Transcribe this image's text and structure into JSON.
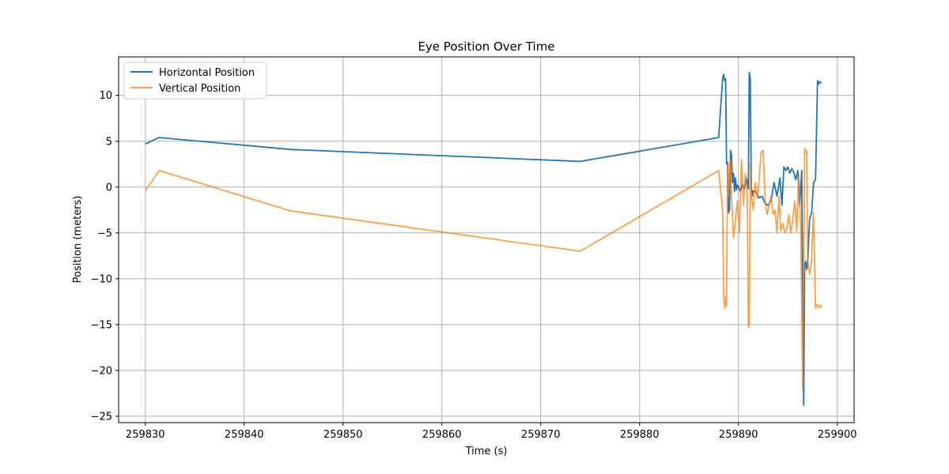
{
  "chart_data": {
    "type": "line",
    "title": "Eye Position Over Time",
    "xlabel": "Time (s)",
    "ylabel": "Position (meters)",
    "xlim": [
      259827.3,
      259901.7
    ],
    "ylim": [
      -25.7,
      14.2
    ],
    "xticks": [
      259830,
      259840,
      259850,
      259860,
      259870,
      259880,
      259890,
      259900
    ],
    "yticks": [
      -25,
      -20,
      -15,
      -10,
      -5,
      0,
      5,
      10
    ],
    "grid": true,
    "legend_position": "top-left",
    "series": [
      {
        "name": "Horizontal Position",
        "color": "#1f77b4",
        "x": [
          259830.0,
          259831.4,
          259844.7,
          259874.0,
          259888.0,
          259888.4,
          259888.5,
          259888.6,
          259888.7,
          259888.8,
          259888.9,
          259889.0,
          259889.1,
          259889.2,
          259889.3,
          259889.4,
          259889.5,
          259889.6,
          259889.7,
          259889.8,
          259889.9,
          259890.0,
          259890.2,
          259890.4,
          259890.6,
          259890.8,
          259891.0,
          259891.1,
          259891.2,
          259891.3,
          259891.4,
          259891.5,
          259891.8,
          259892.1,
          259892.4,
          259892.7,
          259893.0,
          259893.3,
          259893.6,
          259893.9,
          259894.2,
          259894.4,
          259894.6,
          259894.8,
          259895.0,
          259895.2,
          259895.4,
          259895.6,
          259895.8,
          259896.0,
          259896.2,
          259896.4,
          259896.6,
          259896.7,
          259896.8,
          259896.9,
          259897.0,
          259897.2,
          259897.4,
          259897.6,
          259897.8,
          259898.0,
          259898.1,
          259898.2,
          259898.3,
          259898.4
        ],
        "y": [
          4.7,
          5.4,
          4.1,
          2.8,
          5.4,
          11.8,
          12.3,
          11.6,
          11.8,
          2.5,
          2.7,
          -2.8,
          -2.5,
          4.0,
          3.5,
          0.5,
          1.5,
          -0.5,
          1.0,
          -0.3,
          0.2,
          0.0,
          -0.5,
          0.3,
          -0.2,
          1.0,
          -0.2,
          12.5,
          11.8,
          0.0,
          -1.0,
          -0.4,
          -0.6,
          -1.2,
          -1.0,
          -1.8,
          -2.0,
          -1.5,
          0.5,
          -1.0,
          1.0,
          -2.0,
          2.2,
          1.8,
          2.2,
          1.5,
          2.0,
          1.6,
          0.8,
          1.8,
          -2.0,
          1.8,
          -23.8,
          -8.5,
          -8.1,
          -9.0,
          -8.2,
          -3.5,
          -2.8,
          0.5,
          0.8,
          11.6,
          11.2,
          11.5,
          11.4,
          11.3
        ]
      },
      {
        "name": "Vertical Position",
        "color": "#ff7f0e",
        "x": [
          259830.0,
          259831.4,
          259844.7,
          259874.0,
          259888.0,
          259888.4,
          259888.5,
          259888.6,
          259888.7,
          259888.8,
          259888.9,
          259889.0,
          259889.1,
          259889.2,
          259889.3,
          259889.5,
          259889.7,
          259889.9,
          259890.1,
          259890.3,
          259890.5,
          259890.7,
          259890.9,
          259891.0,
          259891.1,
          259891.2,
          259891.3,
          259891.5,
          259891.7,
          259891.9,
          259892.1,
          259892.3,
          259892.5,
          259892.7,
          259892.9,
          259893.1,
          259893.3,
          259893.5,
          259893.7,
          259893.9,
          259894.1,
          259894.3,
          259894.5,
          259894.7,
          259894.9,
          259895.1,
          259895.3,
          259895.5,
          259895.7,
          259895.9,
          259896.1,
          259896.3,
          259896.5,
          259896.7,
          259896.8,
          259896.9,
          259897.0,
          259897.2,
          259897.4,
          259897.6,
          259897.8,
          259898.0,
          259898.1,
          259898.2,
          259898.3,
          259898.4
        ],
        "y": [
          -0.4,
          1.8,
          -2.6,
          -7.0,
          1.8,
          -2.5,
          -11.8,
          -13.2,
          -12.0,
          -13.0,
          2.5,
          -1.0,
          2.5,
          3.0,
          -1.0,
          -5.5,
          -3.5,
          -1.5,
          -5.0,
          3.0,
          -2.0,
          1.5,
          -1.0,
          -15.3,
          -14.8,
          2.6,
          -1.0,
          -2.5,
          0.5,
          -1.2,
          1.0,
          3.8,
          4.0,
          -1.5,
          -3.0,
          -2.0,
          -1.0,
          -3.0,
          -2.5,
          -5.0,
          -1.0,
          -4.8,
          -4.0,
          -5.0,
          -4.5,
          -3.0,
          -5.0,
          -3.5,
          -1.5,
          -4.8,
          1.5,
          -4.5,
          -22.0,
          4.2,
          3.8,
          4.0,
          -8.0,
          -9.5,
          -8.0,
          -2.8,
          -13.2,
          -12.8,
          -13.0,
          -13.2,
          -12.9,
          -13.1
        ]
      }
    ]
  }
}
